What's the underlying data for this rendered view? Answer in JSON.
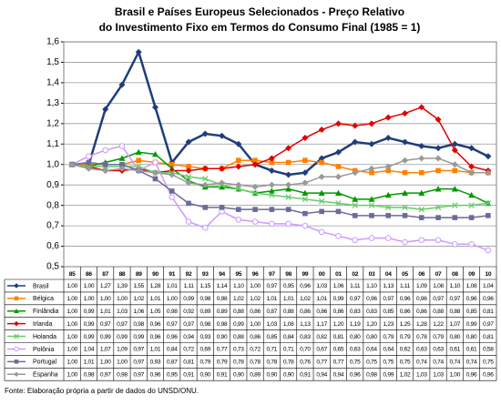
{
  "chart_data": {
    "type": "line",
    "title": [
      "Brasil e Países Europeus Selecionados - Preço Relativo",
      "do Investimento Fixo em Termos do Consumo Final (1985 = 1)"
    ],
    "source": "Fonte: Elaboração própria a partir de dados do UNSD/ONU.",
    "categories": [
      "85",
      "86",
      "87",
      "88",
      "89",
      "90",
      "91",
      "92",
      "93",
      "94",
      "95",
      "96",
      "97",
      "98",
      "99",
      "00",
      "01",
      "02",
      "03",
      "04",
      "05",
      "06",
      "07",
      "08",
      "09",
      "10"
    ],
    "ylim": [
      0.5,
      1.6
    ],
    "yticks": [
      {
        "value": 0.5,
        "label": "0,5"
      },
      {
        "value": 0.6,
        "label": "0,6"
      },
      {
        "value": 0.7,
        "label": "0,7"
      },
      {
        "value": 0.8,
        "label": "0,8"
      },
      {
        "value": 0.9,
        "label": "0,9"
      },
      {
        "value": 1.0,
        "label": "1,0"
      },
      {
        "value": 1.1,
        "label": "1,1"
      },
      {
        "value": 1.2,
        "label": "1,2"
      },
      {
        "value": 1.3,
        "label": "1,3"
      },
      {
        "value": 1.4,
        "label": "1,4"
      },
      {
        "value": 1.5,
        "label": "1,5"
      },
      {
        "value": 1.6,
        "label": "1,6"
      }
    ],
    "grid": true,
    "series": [
      {
        "name": "Brasil",
        "color": "#1f3d7a",
        "marker": "diamond",
        "values": [
          1.0,
          1.0,
          1.27,
          1.39,
          1.55,
          1.28,
          1.01,
          1.11,
          1.15,
          1.14,
          1.1,
          1.0,
          0.97,
          0.95,
          0.96,
          1.03,
          1.06,
          1.11,
          1.1,
          1.13,
          1.11,
          1.09,
          1.08,
          1.1,
          1.08,
          1.04
        ],
        "value_labels": [
          "1,00",
          "1,00",
          "1,27",
          "1,39",
          "1,55",
          "1,28",
          "1,01",
          "1,11",
          "1,15",
          "1,14",
          "1,10",
          "1,00",
          "0,97",
          "0,95",
          "0,96",
          "1,03",
          "1,06",
          "1,11",
          "1,10",
          "1,13",
          "1,11",
          "1,09",
          "1,08",
          "1,10",
          "1,08",
          "1,04"
        ]
      },
      {
        "name": "Bélgica",
        "color": "#ff7f00",
        "marker": "square",
        "values": [
          1.0,
          1.0,
          1.0,
          1.0,
          1.02,
          1.01,
          1.0,
          0.99,
          0.98,
          0.98,
          1.02,
          1.02,
          1.01,
          1.01,
          1.02,
          1.01,
          0.99,
          0.97,
          0.96,
          0.97,
          0.96,
          0.96,
          0.97,
          0.97,
          0.96,
          0.96
        ],
        "value_labels": [
          "1,00",
          "1,00",
          "1,00",
          "1,00",
          "1,02",
          "1,01",
          "1,00",
          "0,99",
          "0,98",
          "0,98",
          "1,02",
          "1,02",
          "1,01",
          "1,01",
          "1,02",
          "1,01",
          "0,99",
          "0,97",
          "0,96",
          "0,97",
          "0,96",
          "0,96",
          "0,97",
          "0,97",
          "0,96",
          "0,96"
        ]
      },
      {
        "name": "Finlândia",
        "color": "#009900",
        "marker": "triangle",
        "values": [
          1.0,
          0.99,
          1.01,
          1.03,
          1.06,
          1.05,
          0.98,
          0.92,
          0.89,
          0.89,
          0.88,
          0.86,
          0.87,
          0.88,
          0.86,
          0.86,
          0.86,
          0.83,
          0.83,
          0.85,
          0.86,
          0.86,
          0.88,
          0.88,
          0.85,
          0.81
        ],
        "value_labels": [
          "1,00",
          "0,99",
          "1,01",
          "1,03",
          "1,06",
          "1,05",
          "0,98",
          "0,92",
          "0,89",
          "0,89",
          "0,88",
          "0,86",
          "0,87",
          "0,88",
          "0,86",
          "0,86",
          "0,86",
          "0,83",
          "0,83",
          "0,85",
          "0,86",
          "0,86",
          "0,88",
          "0,88",
          "0,85",
          "0,81"
        ]
      },
      {
        "name": "Irlanda",
        "color": "#e00000",
        "marker": "diamond",
        "values": [
          1.0,
          0.99,
          0.97,
          0.97,
          0.98,
          0.96,
          0.97,
          0.97,
          0.98,
          0.98,
          0.99,
          1.0,
          1.03,
          1.08,
          1.13,
          1.17,
          1.2,
          1.19,
          1.2,
          1.23,
          1.25,
          1.28,
          1.22,
          1.07,
          0.99,
          0.97
        ],
        "value_labels": [
          "1,00",
          "0,99",
          "0,97",
          "0,97",
          "0,98",
          "0,96",
          "0,97",
          "0,97",
          "0,98",
          "0,98",
          "0,99",
          "1,00",
          "1,03",
          "1,08",
          "1,13",
          "1,17",
          "1,20",
          "1,19",
          "1,20",
          "1,23",
          "1,25",
          "1,28",
          "1,22",
          "1,07",
          "0,99",
          "0,97"
        ]
      },
      {
        "name": "Holanda",
        "color": "#66cc66",
        "marker": "x",
        "values": [
          1.0,
          0.99,
          0.99,
          0.99,
          0.99,
          0.96,
          0.96,
          0.94,
          0.93,
          0.9,
          0.88,
          0.86,
          0.85,
          0.84,
          0.83,
          0.82,
          0.81,
          0.8,
          0.8,
          0.79,
          0.79,
          0.78,
          0.79,
          0.8,
          0.8,
          0.81
        ],
        "value_labels": [
          "1,00",
          "0,99",
          "0,99",
          "0,99",
          "0,99",
          "0,96",
          "0,96",
          "0,94",
          "0,93",
          "0,90",
          "0,88",
          "0,86",
          "0,85",
          "0,84",
          "0,83",
          "0,82",
          "0,81",
          "0,80",
          "0,80",
          "0,79",
          "0,79",
          "0,78",
          "0,79",
          "0,80",
          "0,80",
          "0,81"
        ]
      },
      {
        "name": "Polônia",
        "color": "#cc99ff",
        "marker": "circle",
        "values": [
          1.0,
          1.04,
          1.07,
          1.09,
          0.97,
          1.01,
          0.84,
          0.72,
          0.69,
          0.77,
          0.73,
          0.72,
          0.71,
          0.71,
          0.7,
          0.67,
          0.65,
          0.63,
          0.64,
          0.64,
          0.62,
          0.63,
          0.63,
          0.61,
          0.61,
          0.58
        ],
        "value_labels": [
          "1,00",
          "1,04",
          "1,07",
          "1,09",
          "0,97",
          "1,01",
          "0,84",
          "0,72",
          "0,69",
          "0,77",
          "0,73",
          "0,72",
          "0,71",
          "0,71",
          "0,70",
          "0,67",
          "0,65",
          "0,63",
          "0,64",
          "0,64",
          "0,62",
          "0,63",
          "0,63",
          "0,61",
          "0,61",
          "0,58"
        ]
      },
      {
        "name": "Portugal",
        "color": "#6b6b9b",
        "marker": "square",
        "values": [
          1.0,
          1.01,
          1.0,
          1.0,
          0.97,
          0.93,
          0.87,
          0.81,
          0.79,
          0.79,
          0.78,
          0.78,
          0.78,
          0.78,
          0.76,
          0.77,
          0.77,
          0.75,
          0.75,
          0.75,
          0.75,
          0.74,
          0.74,
          0.74,
          0.74,
          0.75
        ],
        "value_labels": [
          "1,00",
          "1,01",
          "1,00",
          "1,00",
          "0,97",
          "0,93",
          "0,87",
          "0,81",
          "0,79",
          "0,79",
          "0,78",
          "0,78",
          "0,78",
          "0,78",
          "0,76",
          "0,77",
          "0,77",
          "0,75",
          "0,75",
          "0,75",
          "0,75",
          "0,74",
          "0,74",
          "0,74",
          "0,74",
          "0,75"
        ]
      },
      {
        "name": "Espanha",
        "color": "#999999",
        "marker": "diamond",
        "values": [
          1.0,
          0.98,
          0.97,
          0.98,
          0.97,
          0.96,
          0.95,
          0.91,
          0.9,
          0.91,
          0.9,
          0.89,
          0.9,
          0.9,
          0.91,
          0.94,
          0.94,
          0.96,
          0.98,
          0.99,
          1.02,
          1.03,
          1.03,
          1.0,
          0.96,
          0.96
        ],
        "value_labels": [
          "1,00",
          "0,98",
          "0,97",
          "0,98",
          "0,97",
          "0,96",
          "0,95",
          "0,91",
          "0,90",
          "0,91",
          "0,90",
          "0,89",
          "0,90",
          "0,90",
          "0,91",
          "0,94",
          "0,94",
          "0,96",
          "0,98",
          "0,99",
          "1,02",
          "1,03",
          "1,03",
          "1,00",
          "0,96",
          "0,96"
        ]
      }
    ]
  }
}
